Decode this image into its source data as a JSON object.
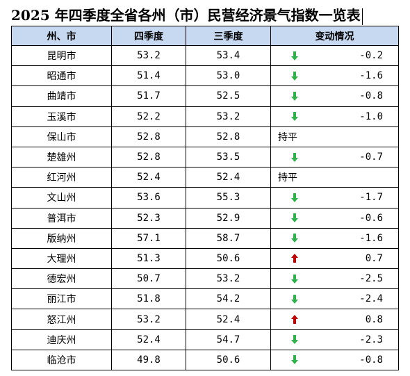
{
  "title": "2025 年四季度全省各州（市）民营经济景气指数一览表",
  "headers": {
    "region": "州、市",
    "q4": "四季度",
    "q3": "三季度",
    "change": "变动情况"
  },
  "colors": {
    "header_bg": "#c6d9f0",
    "down_arrow": "#2fb24c",
    "up_arrow": "#c00000"
  },
  "rows": [
    {
      "region": "昆明市",
      "q4": "53.2",
      "q3": "53.4",
      "trend": "down",
      "change": "-0.2",
      "flat_label": ""
    },
    {
      "region": "昭通市",
      "q4": "51.4",
      "q3": "53.0",
      "trend": "down",
      "change": "-1.6",
      "flat_label": ""
    },
    {
      "region": "曲靖市",
      "q4": "51.7",
      "q3": "52.5",
      "trend": "down",
      "change": "-0.8",
      "flat_label": ""
    },
    {
      "region": "玉溪市",
      "q4": "52.2",
      "q3": "53.2",
      "trend": "down",
      "change": "-1.0",
      "flat_label": ""
    },
    {
      "region": "保山市",
      "q4": "52.8",
      "q3": "52.8",
      "trend": "flat",
      "change": "",
      "flat_label": "持平"
    },
    {
      "region": "楚雄州",
      "q4": "52.8",
      "q3": "53.5",
      "trend": "down",
      "change": "-0.7",
      "flat_label": ""
    },
    {
      "region": "红河州",
      "q4": "52.4",
      "q3": "52.4",
      "trend": "flat",
      "change": "",
      "flat_label": "持平"
    },
    {
      "region": "文山州",
      "q4": "53.6",
      "q3": "55.3",
      "trend": "down",
      "change": "-1.7",
      "flat_label": ""
    },
    {
      "region": "普洱市",
      "q4": "52.3",
      "q3": "52.9",
      "trend": "down",
      "change": "-0.6",
      "flat_label": ""
    },
    {
      "region": "版纳州",
      "q4": "57.1",
      "q3": "58.7",
      "trend": "down",
      "change": "-1.6",
      "flat_label": ""
    },
    {
      "region": "大理州",
      "q4": "51.3",
      "q3": "50.6",
      "trend": "up",
      "change": "0.7",
      "flat_label": ""
    },
    {
      "region": "德宏州",
      "q4": "50.7",
      "q3": "53.2",
      "trend": "down",
      "change": "-2.5",
      "flat_label": ""
    },
    {
      "region": "丽江市",
      "q4": "51.8",
      "q3": "54.2",
      "trend": "down",
      "change": "-2.4",
      "flat_label": ""
    },
    {
      "region": "怒江州",
      "q4": "53.2",
      "q3": "52.4",
      "trend": "up",
      "change": "0.8",
      "flat_label": ""
    },
    {
      "region": "迪庆州",
      "q4": "52.4",
      "q3": "54.7",
      "trend": "down",
      "change": "-2.3",
      "flat_label": ""
    },
    {
      "region": "临沧市",
      "q4": "49.8",
      "q3": "50.6",
      "trend": "down",
      "change": "-0.8",
      "flat_label": ""
    }
  ]
}
